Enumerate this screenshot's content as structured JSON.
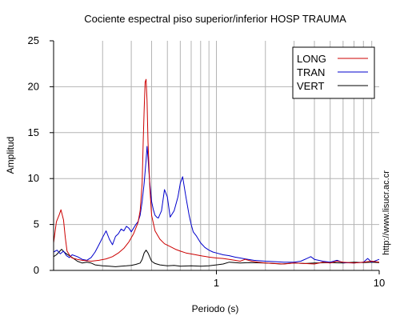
{
  "chart_data": {
    "type": "line",
    "title": "Cociente espectral piso superior/inferior  HOSP TRAUMA",
    "xlabel": "Periodo (s)",
    "ylabel": "Amplitud",
    "x_scale": "log",
    "xlim": [
      0.1,
      10
    ],
    "ylim": [
      0,
      25
    ],
    "x_ticks": [
      {
        "value": 1,
        "label": "1"
      },
      {
        "value": 10,
        "label": "10"
      }
    ],
    "y_ticks": [
      {
        "value": 0,
        "label": "0"
      },
      {
        "value": 5,
        "label": "5"
      },
      {
        "value": 10,
        "label": "10"
      },
      {
        "value": 15,
        "label": "15"
      },
      {
        "value": 20,
        "label": "20"
      },
      {
        "value": 25,
        "label": "25"
      }
    ],
    "grid": true,
    "legend_position": "top-right",
    "side_label": "http://www.lisucr.ac.cr",
    "series": [
      {
        "name": "LONG",
        "color": "#cc0000",
        "x": [
          0.1,
          0.104,
          0.108,
          0.111,
          0.115,
          0.118,
          0.121,
          0.126,
          0.13,
          0.14,
          0.15,
          0.17,
          0.19,
          0.21,
          0.23,
          0.25,
          0.27,
          0.29,
          0.31,
          0.33,
          0.34,
          0.35,
          0.355,
          0.36,
          0.365,
          0.37,
          0.375,
          0.38,
          0.39,
          0.4,
          0.42,
          0.45,
          0.48,
          0.52,
          0.56,
          0.6,
          0.65,
          0.72,
          0.8,
          0.9,
          1.0,
          1.1,
          1.2,
          1.3,
          1.4,
          1.5,
          1.65,
          1.8,
          2.0,
          2.3,
          2.6,
          3.0,
          3.5,
          4.0,
          4.5,
          5.0,
          5.5,
          6.0,
          7.0,
          8.0,
          9.0,
          10.0
        ],
        "y": [
          3.0,
          5.3,
          6.0,
          6.6,
          5.5,
          3.6,
          2.1,
          1.6,
          1.35,
          1.2,
          1.1,
          1.0,
          1.1,
          1.25,
          1.5,
          1.9,
          2.4,
          3.1,
          4.0,
          5.2,
          6.5,
          9.5,
          14.0,
          17.5,
          20.5,
          20.8,
          18.5,
          14.0,
          9.0,
          6.0,
          4.3,
          3.4,
          2.9,
          2.6,
          2.3,
          2.1,
          1.9,
          1.75,
          1.6,
          1.45,
          1.35,
          1.3,
          1.2,
          1.1,
          1.0,
          1.2,
          1.0,
          0.9,
          0.8,
          0.75,
          0.7,
          0.8,
          0.75,
          0.7,
          0.9,
          0.8,
          1.0,
          0.9,
          0.8,
          0.9,
          1.0,
          0.9
        ]
      },
      {
        "name": "TRAN",
        "color": "#0000cc",
        "x": [
          0.1,
          0.105,
          0.11,
          0.115,
          0.12,
          0.125,
          0.13,
          0.14,
          0.15,
          0.16,
          0.17,
          0.18,
          0.19,
          0.2,
          0.21,
          0.22,
          0.23,
          0.24,
          0.25,
          0.26,
          0.27,
          0.28,
          0.29,
          0.3,
          0.31,
          0.32,
          0.33,
          0.34,
          0.35,
          0.36,
          0.37,
          0.375,
          0.38,
          0.385,
          0.39,
          0.4,
          0.41,
          0.42,
          0.43,
          0.44,
          0.46,
          0.48,
          0.5,
          0.52,
          0.55,
          0.58,
          0.6,
          0.62,
          0.65,
          0.68,
          0.7,
          0.72,
          0.75,
          0.8,
          0.85,
          0.9,
          0.95,
          1.0,
          1.1,
          1.2,
          1.3,
          1.4,
          1.5,
          1.7,
          2.0,
          2.3,
          2.6,
          3.0,
          3.3,
          3.6,
          3.8,
          4.0,
          4.5,
          5.0,
          5.5,
          6.0,
          7.0,
          8.0,
          8.5,
          9.0,
          10.0
        ],
        "y": [
          2.0,
          2.2,
          1.8,
          2.1,
          1.6,
          1.4,
          1.7,
          1.5,
          1.2,
          1.1,
          1.4,
          2.0,
          2.8,
          3.6,
          4.3,
          3.4,
          2.8,
          3.7,
          4.0,
          4.5,
          4.3,
          4.8,
          4.6,
          4.2,
          4.6,
          5.0,
          5.3,
          6.0,
          7.5,
          9.5,
          12.0,
          13.5,
          12.3,
          10.8,
          9.5,
          7.5,
          6.6,
          6.0,
          5.8,
          5.7,
          6.5,
          8.8,
          8.0,
          5.8,
          6.5,
          8.0,
          9.5,
          10.2,
          8.0,
          6.0,
          5.0,
          4.2,
          3.8,
          3.0,
          2.5,
          2.2,
          2.0,
          1.9,
          1.7,
          1.6,
          1.45,
          1.35,
          1.25,
          1.1,
          1.0,
          0.95,
          0.9,
          0.9,
          1.0,
          1.3,
          1.5,
          1.2,
          1.0,
          0.9,
          1.1,
          0.85,
          0.8,
          0.9,
          1.3,
          0.9,
          1.2
        ]
      },
      {
        "name": "VERT",
        "color": "#000000",
        "x": [
          0.1,
          0.104,
          0.108,
          0.112,
          0.116,
          0.12,
          0.125,
          0.13,
          0.14,
          0.15,
          0.16,
          0.17,
          0.18,
          0.2,
          0.22,
          0.24,
          0.26,
          0.28,
          0.3,
          0.32,
          0.34,
          0.35,
          0.36,
          0.37,
          0.38,
          0.4,
          0.42,
          0.45,
          0.5,
          0.55,
          0.6,
          0.7,
          0.8,
          0.9,
          1.0,
          1.1,
          1.2,
          1.4,
          1.6,
          2.0,
          2.5,
          3.0,
          3.5,
          4.0,
          5.0,
          6.0,
          7.0,
          8.0,
          9.0,
          10.0
        ],
        "y": [
          1.5,
          1.7,
          2.0,
          2.3,
          2.0,
          1.8,
          1.6,
          1.4,
          1.0,
          0.8,
          0.9,
          0.8,
          0.6,
          0.5,
          0.45,
          0.4,
          0.45,
          0.5,
          0.55,
          0.65,
          0.8,
          1.2,
          1.9,
          2.2,
          1.9,
          1.0,
          0.75,
          0.6,
          0.5,
          0.55,
          0.45,
          0.5,
          0.45,
          0.5,
          0.6,
          0.7,
          0.9,
          0.8,
          0.85,
          0.8,
          0.7,
          0.8,
          0.75,
          0.8,
          0.85,
          0.8,
          0.9,
          0.85,
          0.9,
          0.85
        ]
      }
    ]
  }
}
